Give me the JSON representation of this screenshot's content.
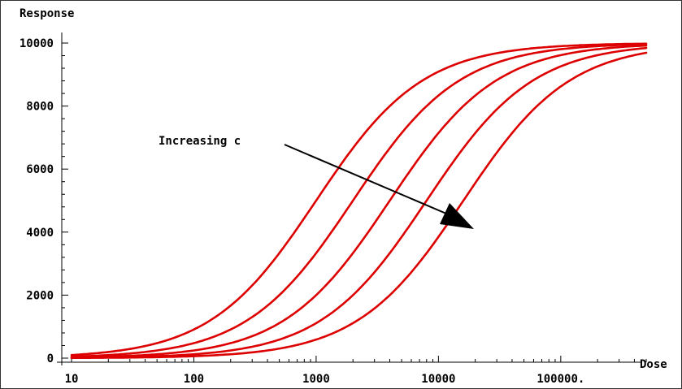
{
  "chart_data": {
    "type": "line",
    "xlabel": "Dose",
    "ylabel": "Response",
    "x_scale": "log",
    "xlim": [
      10,
      500000
    ],
    "ylim": [
      0,
      10000
    ],
    "x_ticks": [
      {
        "value": 10,
        "label": "10"
      },
      {
        "value": 100,
        "label": "100"
      },
      {
        "value": 1000,
        "label": "1000"
      },
      {
        "value": 10000,
        "label": "10000"
      },
      {
        "value": 100000,
        "label": "100000."
      }
    ],
    "y_ticks": [
      {
        "value": 0,
        "label": "0"
      },
      {
        "value": 2000,
        "label": "2000"
      },
      {
        "value": 4000,
        "label": "4000"
      },
      {
        "value": 6000,
        "label": "6000"
      },
      {
        "value": 8000,
        "label": "8000"
      },
      {
        "value": 10000,
        "label": "10000"
      }
    ],
    "series_color": "#dd0000",
    "series": [
      {
        "ec50": 1000,
        "hill": 1,
        "max": 10000
      },
      {
        "ec50": 2000,
        "hill": 1,
        "max": 10000
      },
      {
        "ec50": 4000,
        "hill": 1,
        "max": 10000
      },
      {
        "ec50": 8000,
        "hill": 1,
        "max": 10000
      },
      {
        "ec50": 16000,
        "hill": 1,
        "max": 10000
      }
    ],
    "annotation": {
      "text": "Increasing c",
      "arrow": "from upper-left to lower-right across the curves"
    },
    "grid": false,
    "legend": "none"
  }
}
